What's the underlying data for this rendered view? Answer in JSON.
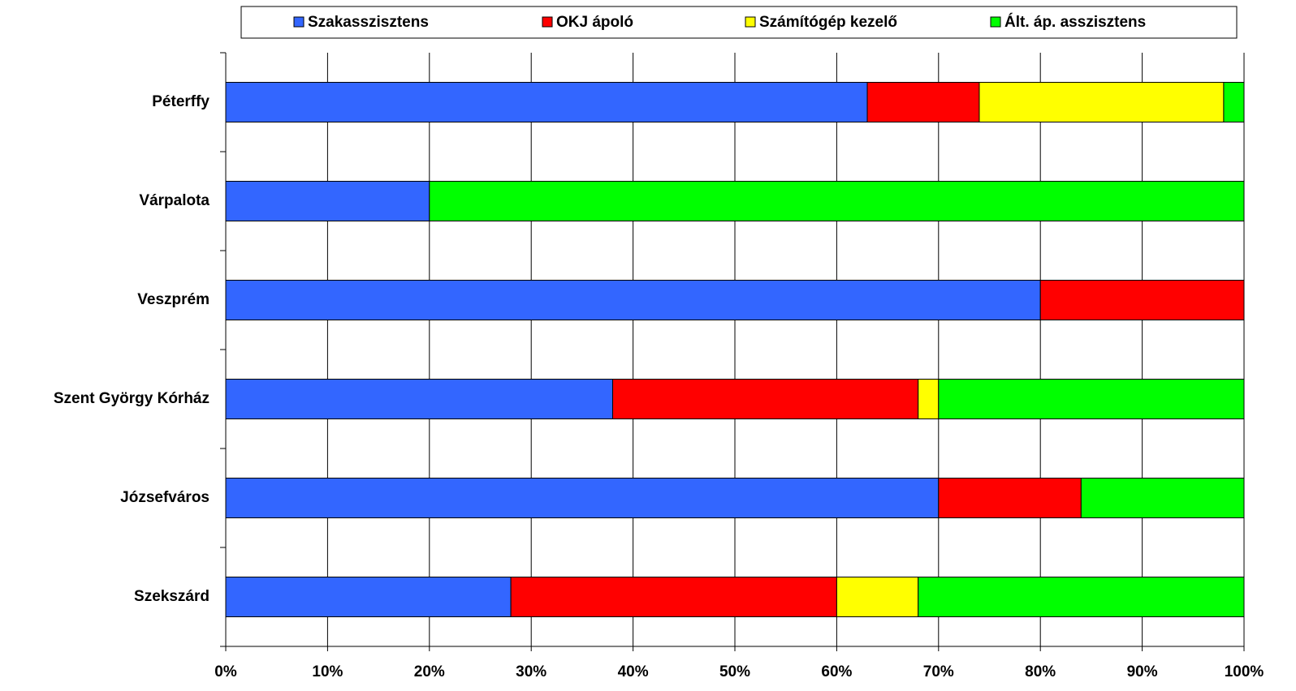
{
  "chart_data": {
    "type": "stacked_bar_horizontal",
    "categories": [
      "Péterffy",
      "Várpalota",
      "Veszprém",
      "Szent György Kórház",
      "Józsefváros",
      "Szekszárd"
    ],
    "series": [
      {
        "name": "Szakasszisztens",
        "color": "#3366ff",
        "values": [
          63,
          20,
          80,
          38,
          70,
          28
        ]
      },
      {
        "name": "OKJ ápoló",
        "color": "#ff0000",
        "values": [
          11,
          0,
          20,
          30,
          14,
          32
        ]
      },
      {
        "name": "Számítógép kezelő",
        "color": "#ffff00",
        "values": [
          24,
          0,
          0,
          2,
          0,
          8
        ]
      },
      {
        "name": "Ált. áp. asszisztens",
        "color": "#00ff00",
        "values": [
          2,
          80,
          0,
          30,
          16,
          32
        ]
      }
    ],
    "xlim": [
      0,
      100
    ],
    "xticks": [
      {
        "value": 0,
        "label": "0%"
      },
      {
        "value": 10,
        "label": "10%"
      },
      {
        "value": 20,
        "label": "20%"
      },
      {
        "value": 30,
        "label": "30%"
      },
      {
        "value": 40,
        "label": "40%"
      },
      {
        "value": 50,
        "label": "50%"
      },
      {
        "value": 60,
        "label": "60%"
      },
      {
        "value": 70,
        "label": "70%"
      },
      {
        "value": 80,
        "label": "80%"
      },
      {
        "value": 90,
        "label": "90%"
      },
      {
        "value": 100,
        "label": "100%"
      }
    ],
    "grid": true,
    "legend": "top"
  }
}
